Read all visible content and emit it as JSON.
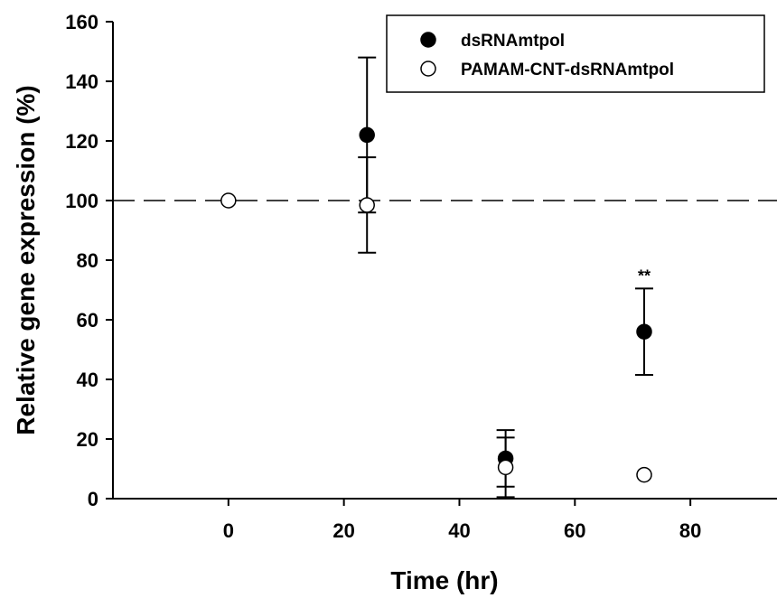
{
  "chart_data": {
    "type": "scatter",
    "xlabel": "Time (hr)",
    "ylabel": "Relative gene expression (%)",
    "xlim": [
      -20,
      95
    ],
    "ylim": [
      0,
      160
    ],
    "x_ticks": [
      0,
      20,
      40,
      60,
      80
    ],
    "y_ticks": [
      0,
      20,
      40,
      60,
      80,
      100,
      120,
      140,
      160
    ],
    "grid": false,
    "legend_position": "top-right",
    "reference_line": {
      "y": 100,
      "style": "dashed"
    },
    "series": [
      {
        "name": "dsRNAmtpol",
        "marker": "filled-circle",
        "color": "#000000",
        "points": [
          {
            "x": 24,
            "y": 122,
            "err": 26
          },
          {
            "x": 48,
            "y": 13.5,
            "err": 9.5
          },
          {
            "x": 72,
            "y": 56,
            "err": 14.5
          }
        ]
      },
      {
        "name": "PAMAM-CNT-dsRNAmtpol",
        "marker": "open-circle",
        "color": "#000000",
        "points": [
          {
            "x": 0,
            "y": 100,
            "err": 0
          },
          {
            "x": 24,
            "y": 98.5,
            "err": 16
          },
          {
            "x": 48,
            "y": 10.5,
            "err": 10
          },
          {
            "x": 72,
            "y": 8,
            "err": 0
          }
        ]
      }
    ],
    "annotations": [
      {
        "text": "**",
        "x": 72,
        "y": 70.5
      }
    ]
  }
}
